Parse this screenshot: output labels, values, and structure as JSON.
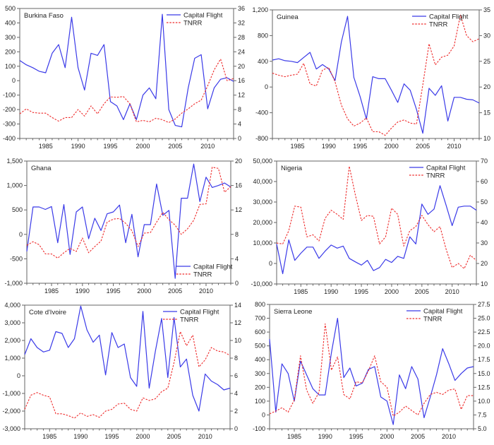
{
  "figure": {
    "series_labels": {
      "cf": "Capital Flight",
      "tnrr": "TNRR"
    },
    "colors": {
      "cf": "#3a3ae8",
      "tnrr": "#ee2a2a",
      "axis": "#555555",
      "text": "#222222"
    }
  },
  "chart_data": [
    {
      "type": "line",
      "title": "Burkina Faso",
      "x": [
        1981,
        1982,
        1983,
        1984,
        1985,
        1986,
        1987,
        1988,
        1989,
        1990,
        1991,
        1992,
        1993,
        1994,
        1995,
        1996,
        1997,
        1998,
        1999,
        2000,
        2001,
        2002,
        2003,
        2004,
        2005,
        2006,
        2007,
        2008,
        2009,
        2010,
        2011,
        2012,
        2013,
        2014
      ],
      "xticks": [
        "1985",
        "1990",
        "1995",
        "2000",
        "2005",
        "2010"
      ],
      "xlim": [
        1981,
        2014
      ],
      "ylim_left": [
        -400,
        500
      ],
      "yticks_left": [
        "-400",
        "-300",
        "-200",
        "-100",
        "0",
        "100",
        "200",
        "300",
        "400",
        "500"
      ],
      "ylim_right": [
        0,
        36
      ],
      "yticks_right": [
        "0",
        "4",
        "8",
        "12",
        "16",
        "20",
        "24",
        "28",
        "32",
        "36"
      ],
      "legend": "top-right",
      "grid": false,
      "series": [
        {
          "name": "Capital Flight",
          "axis": "left",
          "style": "solid",
          "values": [
            140,
            110,
            90,
            65,
            55,
            190,
            250,
            90,
            440,
            90,
            -65,
            190,
            175,
            250,
            -145,
            -175,
            -270,
            -160,
            -270,
            -100,
            -50,
            -125,
            460,
            -200,
            -310,
            -320,
            -50,
            155,
            180,
            -195,
            -50,
            10,
            20,
            -5
          ]
        },
        {
          "name": "TNRR",
          "axis": "right",
          "style": "dashed",
          "values": [
            6.8,
            8.2,
            7.2,
            7,
            7,
            5.8,
            4.8,
            5.8,
            5.8,
            8,
            6.2,
            9,
            6.8,
            9.6,
            11.5,
            11.4,
            11.6,
            9.6,
            4.6,
            5,
            4.6,
            5.6,
            5.2,
            4.4,
            5.4,
            7,
            8.2,
            9.6,
            10.6,
            14.6,
            19,
            22,
            16,
            16.6
          ]
        }
      ]
    },
    {
      "type": "line",
      "title": "Guinea",
      "x": [
        1981,
        1982,
        1983,
        1984,
        1985,
        1986,
        1987,
        1988,
        1989,
        1990,
        1991,
        1992,
        1993,
        1994,
        1995,
        1996,
        1997,
        1998,
        1999,
        2000,
        2001,
        2002,
        2003,
        2004,
        2005,
        2006,
        2007,
        2008,
        2009,
        2010,
        2011,
        2012,
        2013,
        2014
      ],
      "xticks": [
        "1985",
        "1990",
        "1995",
        "2000",
        "2005",
        "2010"
      ],
      "xlim": [
        1981,
        2014
      ],
      "ylim_left": [
        -800,
        1200
      ],
      "yticks_left": [
        "-800",
        "-400",
        "0",
        "400",
        "800",
        "1,200"
      ],
      "ylim_right": [
        10,
        35
      ],
      "yticks_right": [
        "10",
        "15",
        "20",
        "25",
        "30",
        "35"
      ],
      "legend": "top-right",
      "grid": false,
      "series": [
        {
          "name": "Capital Flight",
          "axis": "left",
          "style": "solid",
          "values": [
            420,
            440,
            410,
            400,
            380,
            460,
            540,
            280,
            350,
            280,
            100,
            700,
            1100,
            150,
            -150,
            -500,
            160,
            130,
            130,
            -50,
            -240,
            50,
            -50,
            -350,
            -720,
            -20,
            -130,
            20,
            -530,
            -160,
            -160,
            -190,
            -200,
            -250
          ]
        },
        {
          "name": "TNRR",
          "axis": "right",
          "style": "dashed",
          "values": [
            22.7,
            22.3,
            22,
            22.3,
            22.5,
            24.6,
            20.6,
            20.2,
            23.3,
            23.8,
            21,
            16.5,
            13.8,
            12.4,
            13,
            14,
            11.3,
            11.3,
            10.6,
            12,
            13.2,
            13.6,
            13,
            12.8,
            20.4,
            28.4,
            24.3,
            25.8,
            26.2,
            28,
            34,
            30,
            28.8,
            29.4
          ]
        }
      ]
    },
    {
      "type": "line",
      "title": "Ghana",
      "x": [
        1981,
        1982,
        1983,
        1984,
        1985,
        1986,
        1987,
        1988,
        1989,
        1990,
        1991,
        1992,
        1993,
        1994,
        1995,
        1996,
        1997,
        1998,
        1999,
        2000,
        2001,
        2002,
        2003,
        2004,
        2005,
        2006,
        2007,
        2008,
        2009,
        2010,
        2011,
        2012,
        2013,
        2014
      ],
      "xticks": [
        "1985",
        "1990",
        "1995",
        "2000",
        "2005",
        "2010"
      ],
      "xlim": [
        1981,
        2014
      ],
      "ylim_left": [
        -1000,
        1500
      ],
      "yticks_left": [
        "-1,000",
        "-500",
        "0",
        "500",
        "1,000",
        "1,500"
      ],
      "ylim_right": [
        0,
        20
      ],
      "yticks_right": [
        "0",
        "4",
        "8",
        "12",
        "16",
        "20"
      ],
      "legend": "bottom-right",
      "grid": false,
      "series": [
        {
          "name": "Capital Flight",
          "axis": "left",
          "style": "solid",
          "values": [
            -350,
            560,
            560,
            510,
            570,
            -170,
            610,
            -410,
            460,
            560,
            -90,
            330,
            80,
            420,
            460,
            600,
            -170,
            410,
            -460,
            200,
            200,
            1030,
            390,
            490,
            -900,
            740,
            740,
            1440,
            670,
            1170,
            960,
            1000,
            1050,
            970
          ]
        },
        {
          "name": "TNRR",
          "axis": "right",
          "style": "dashed",
          "values": [
            6.2,
            6.8,
            6.3,
            4.8,
            4.8,
            4.1,
            5,
            5.7,
            5.2,
            7.4,
            5,
            6,
            6.9,
            10,
            10.5,
            10.6,
            9.8,
            8.6,
            6,
            8.2,
            8.3,
            10,
            11.6,
            10.4,
            9.5,
            8,
            8.9,
            10.3,
            12.9,
            13,
            19,
            18.8,
            14.9,
            15.8
          ]
        }
      ]
    },
    {
      "type": "line",
      "title": "Nigeria",
      "x": [
        1981,
        1982,
        1983,
        1984,
        1985,
        1986,
        1987,
        1988,
        1989,
        1990,
        1991,
        1992,
        1993,
        1994,
        1995,
        1996,
        1997,
        1998,
        1999,
        2000,
        2001,
        2002,
        2003,
        2004,
        2005,
        2006,
        2007,
        2008,
        2009,
        2010,
        2011,
        2012,
        2013,
        2014
      ],
      "xticks": [
        "1985",
        "1990",
        "1995",
        "2000",
        "2005",
        "2010"
      ],
      "xlim": [
        1981,
        2014
      ],
      "ylim_left": [
        -10000,
        50000
      ],
      "yticks_left": [
        "-10,000",
        "0",
        "10,000",
        "20,000",
        "30,000",
        "40,000",
        "50,000"
      ],
      "ylim_right": [
        10,
        70
      ],
      "yticks_right": [
        "10",
        "20",
        "30",
        "40",
        "50",
        "60",
        "70"
      ],
      "legend": "top-right",
      "grid": false,
      "series": [
        {
          "name": "Capital Flight",
          "axis": "left",
          "style": "solid",
          "values": [
            9500,
            -5000,
            11500,
            1500,
            5000,
            8000,
            8000,
            2500,
            6000,
            9000,
            7500,
            8500,
            2500,
            800,
            -800,
            1500,
            -3500,
            -2000,
            2000,
            500,
            3500,
            2500,
            13000,
            9500,
            29000,
            24000,
            26500,
            38000,
            28500,
            18500,
            27500,
            28000,
            28000,
            26000
          ]
        },
        {
          "name": "TNRR",
          "axis": "right",
          "style": "dashed",
          "values": [
            30,
            29.5,
            36,
            48,
            47.5,
            33,
            34,
            31,
            42,
            46,
            44,
            41.5,
            67.5,
            53.5,
            41,
            43.5,
            43,
            29.5,
            33,
            47,
            44,
            28.5,
            36,
            38,
            43.5,
            39,
            35.5,
            38,
            27,
            18,
            20,
            17.5,
            24,
            21.5
          ]
        }
      ]
    },
    {
      "type": "line",
      "title": "Cote d'Ivoire",
      "x": [
        1981,
        1982,
        1983,
        1984,
        1985,
        1986,
        1987,
        1988,
        1989,
        1990,
        1991,
        1992,
        1993,
        1994,
        1995,
        1996,
        1997,
        1998,
        1999,
        2000,
        2001,
        2002,
        2003,
        2004,
        2005,
        2006,
        2007,
        2008,
        2009,
        2010,
        2011,
        2012,
        2013,
        2014
      ],
      "xticks": [
        "1985",
        "1990",
        "1995",
        "2000",
        "2005",
        "2010"
      ],
      "xlim": [
        1981,
        2014
      ],
      "ylim_left": [
        -3000,
        4000
      ],
      "yticks_left": [
        "-3,000",
        "-2,000",
        "-1,000",
        "0",
        "1,000",
        "2,000",
        "3,000",
        "4,000"
      ],
      "ylim_right": [
        0,
        14
      ],
      "yticks_right": [
        "0",
        "2",
        "4",
        "6",
        "8",
        "10",
        "12",
        "14"
      ],
      "legend": "top-right",
      "grid": false,
      "series": [
        {
          "name": "Capital Flight",
          "axis": "left",
          "style": "solid",
          "values": [
            1200,
            2100,
            1600,
            1350,
            1450,
            2500,
            2400,
            1600,
            2100,
            3950,
            2600,
            1900,
            2300,
            50,
            2450,
            1600,
            1800,
            -100,
            -600,
            3650,
            -700,
            1400,
            3250,
            -100,
            3300,
            500,
            950,
            -1100,
            -2000,
            100,
            -300,
            -500,
            -800,
            -700
          ]
        },
        {
          "name": "TNRR",
          "axis": "right",
          "style": "dashed",
          "values": [
            2.2,
            3.8,
            4.1,
            3.8,
            3.6,
            1.7,
            1.7,
            1.5,
            1.2,
            1.8,
            1.4,
            1.6,
            1.3,
            2,
            2.2,
            2.8,
            2.9,
            2.2,
            2,
            3.5,
            3.2,
            3.4,
            4.2,
            4.6,
            7.5,
            11,
            9.4,
            10.6,
            7,
            7.8,
            9.2,
            8.8,
            8.7,
            8.3
          ]
        }
      ]
    },
    {
      "type": "line",
      "title": "Sierra Leone",
      "x": [
        1981,
        1982,
        1983,
        1984,
        1985,
        1986,
        1987,
        1988,
        1989,
        1990,
        1991,
        1992,
        1993,
        1994,
        1995,
        1996,
        1997,
        1998,
        1999,
        2000,
        2001,
        2002,
        2003,
        2004,
        2005,
        2006,
        2007,
        2008,
        2009,
        2010,
        2011,
        2012,
        2013,
        2014
      ],
      "xticks": [
        "1985",
        "1990",
        "1995",
        "2000",
        "2005",
        "2010"
      ],
      "xlim": [
        1981,
        2014
      ],
      "ylim_left": [
        -100,
        800
      ],
      "yticks_left": [
        "-100",
        "0",
        "100",
        "200",
        "300",
        "400",
        "500",
        "600",
        "700",
        "800"
      ],
      "ylim_right": [
        5,
        27.5
      ],
      "yticks_right": [
        "5.0",
        "7.5",
        "10.0",
        "12.5",
        "15.0",
        "17.5",
        "20.0",
        "22.5",
        "25.0",
        "27.5"
      ],
      "legend": "top-right",
      "grid": false,
      "series": [
        {
          "name": "Capital Flight",
          "axis": "left",
          "style": "solid",
          "values": [
            550,
            20,
            370,
            300,
            100,
            390,
            290,
            190,
            145,
            145,
            450,
            700,
            270,
            340,
            210,
            230,
            330,
            350,
            130,
            100,
            -70,
            290,
            190,
            350,
            260,
            -20,
            130,
            290,
            480,
            370,
            250,
            300,
            340,
            350
          ]
        },
        {
          "name": "TNRR",
          "axis": "right",
          "style": "dashed",
          "values": [
            7.7,
            8.2,
            8.8,
            8,
            10.2,
            18.2,
            12,
            9.6,
            11.6,
            24,
            15.6,
            18,
            11.2,
            10.4,
            13.5,
            13.3,
            15.5,
            18.2,
            13.5,
            12.5,
            7.3,
            8,
            9.1,
            8.3,
            7.5,
            9.6,
            11.2,
            11.6,
            11.2,
            12,
            12.2,
            8.5,
            11,
            11
          ]
        }
      ]
    }
  ]
}
